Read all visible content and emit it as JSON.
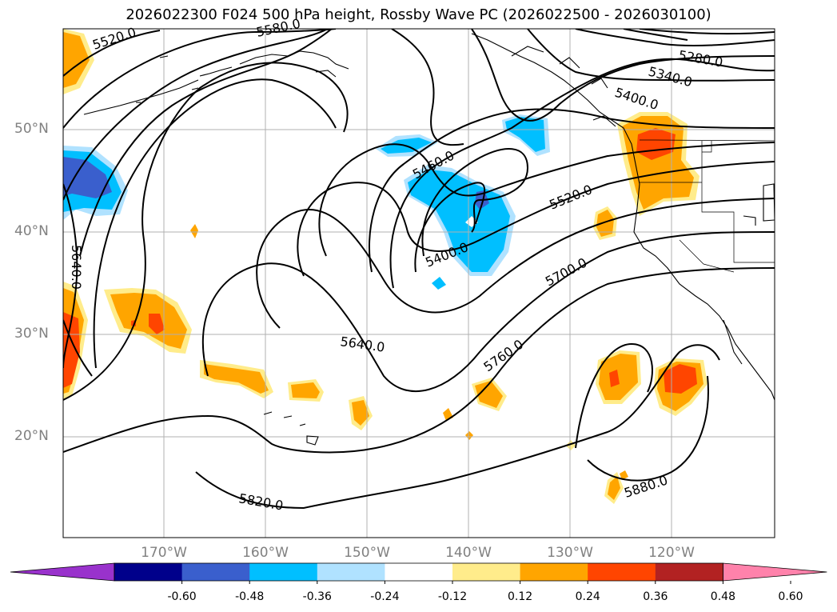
{
  "title": "2026022300 F024 500 hPa height, Rossby Wave PC (2026022500 - 2026030100)",
  "lat_labels": [
    "50°N",
    "40°N",
    "30°N",
    "20°N"
  ],
  "lon_labels": [
    "170°W",
    "160°W",
    "150°W",
    "140°W",
    "130°W",
    "120°W"
  ],
  "contour_labels": [
    "5520.0",
    "5580.0",
    "5280.0",
    "5340.0",
    "5400.0",
    "5460.0",
    "5520.0",
    "5640.0",
    "5400.0",
    "5700.0",
    "5640.0",
    "5760.0",
    "5820.0",
    "5880.0"
  ],
  "colorbar": {
    "ticks": [
      "-0.60",
      "-0.48",
      "-0.36",
      "-0.24",
      "-0.12",
      "0.12",
      "0.24",
      "0.36",
      "0.48",
      "0.60"
    ],
    "colors": [
      "#9932cc",
      "#00008b",
      "#3a5fcd",
      "#00bfff",
      "#b0e2ff",
      "#ffffff",
      "#ffec8b",
      "#ffa500",
      "#ff4500",
      "#b22222",
      "#ff82ab"
    ]
  }
}
